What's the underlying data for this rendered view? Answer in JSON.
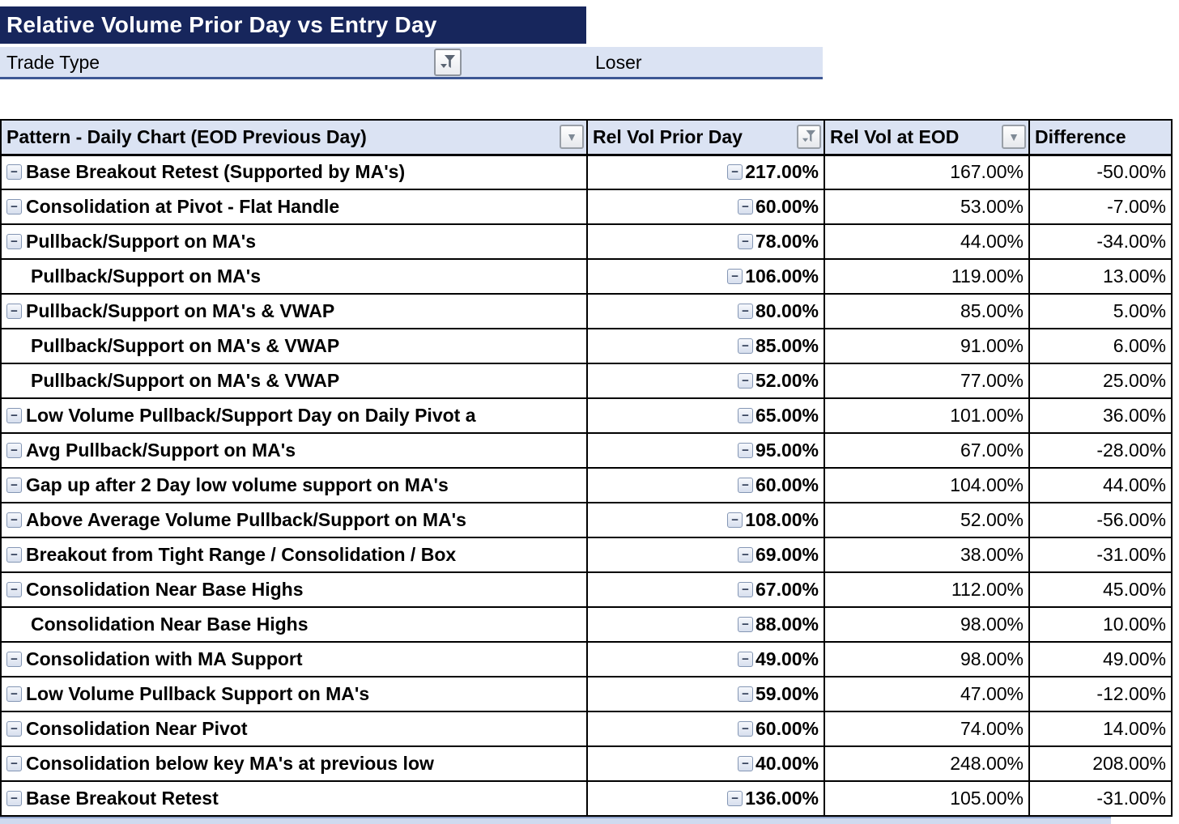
{
  "title": "Relative Volume Prior Day vs Entry Day",
  "filter": {
    "label": "Trade Type",
    "value": "Loser"
  },
  "icons": {
    "collapse_glyph": "−",
    "dropdown_glyph": "▼"
  },
  "colors": {
    "title_bg": "#17265C",
    "band_bg": "#DBE3F3",
    "header_bg": "#DBE3F3",
    "grid": "#000000",
    "band_border": "#3D5794",
    "strip_bg": "#CFDAEF"
  },
  "table": {
    "columns": [
      {
        "label": "Pattern - Daily Chart (EOD Previous Day)",
        "button": "dropdown"
      },
      {
        "label": "Rel Vol Prior Day",
        "button": "filter"
      },
      {
        "label": "Rel Vol at EOD",
        "button": "dropdown"
      },
      {
        "label": "Difference",
        "button": "none"
      }
    ],
    "rows": [
      {
        "pattern": "Base Breakout Retest (Supported by MA's)",
        "collapsible": true,
        "prior": "217.00%",
        "eod": "167.00%",
        "diff": "-50.00%"
      },
      {
        "pattern": "Consolidation at Pivot - Flat Handle",
        "collapsible": true,
        "prior": "60.00%",
        "eod": "53.00%",
        "diff": "-7.00%"
      },
      {
        "pattern": "Pullback/Support on MA's",
        "collapsible": true,
        "prior": "78.00%",
        "eod": "44.00%",
        "diff": "-34.00%"
      },
      {
        "pattern": "Pullback/Support on MA's",
        "collapsible": false,
        "prior": "106.00%",
        "eod": "119.00%",
        "diff": "13.00%"
      },
      {
        "pattern": "Pullback/Support on MA's & VWAP",
        "collapsible": true,
        "prior": "80.00%",
        "eod": "85.00%",
        "diff": "5.00%"
      },
      {
        "pattern": "Pullback/Support on MA's & VWAP",
        "collapsible": false,
        "prior": "85.00%",
        "eod": "91.00%",
        "diff": "6.00%"
      },
      {
        "pattern": "Pullback/Support on MA's & VWAP",
        "collapsible": false,
        "prior": "52.00%",
        "eod": "77.00%",
        "diff": "25.00%"
      },
      {
        "pattern": "Low Volume Pullback/Support Day on Daily Pivot a",
        "collapsible": true,
        "prior": "65.00%",
        "eod": "101.00%",
        "diff": "36.00%"
      },
      {
        "pattern": "Avg Pullback/Support on MA's",
        "collapsible": true,
        "prior": "95.00%",
        "eod": "67.00%",
        "diff": "-28.00%"
      },
      {
        "pattern": "Gap up after 2 Day low volume support on MA's",
        "collapsible": true,
        "prior": "60.00%",
        "eod": "104.00%",
        "diff": "44.00%"
      },
      {
        "pattern": "Above Average Volume Pullback/Support on MA's",
        "collapsible": true,
        "prior": "108.00%",
        "eod": "52.00%",
        "diff": "-56.00%"
      },
      {
        "pattern": "Breakout from Tight Range / Consolidation / Box",
        "collapsible": true,
        "prior": "69.00%",
        "eod": "38.00%",
        "diff": "-31.00%"
      },
      {
        "pattern": "Consolidation Near Base Highs",
        "collapsible": true,
        "prior": "67.00%",
        "eod": "112.00%",
        "diff": "45.00%"
      },
      {
        "pattern": "Consolidation Near Base Highs",
        "collapsible": false,
        "prior": "88.00%",
        "eod": "98.00%",
        "diff": "10.00%"
      },
      {
        "pattern": "Consolidation with MA Support",
        "collapsible": true,
        "prior": "49.00%",
        "eod": "98.00%",
        "diff": "49.00%"
      },
      {
        "pattern": "Low Volume Pullback Support on MA's",
        "collapsible": true,
        "prior": "59.00%",
        "eod": "47.00%",
        "diff": "-12.00%"
      },
      {
        "pattern": "Consolidation Near Pivot",
        "collapsible": true,
        "prior": "60.00%",
        "eod": "74.00%",
        "diff": "14.00%"
      },
      {
        "pattern": "Consolidation below key MA's at previous low",
        "collapsible": true,
        "prior": "40.00%",
        "eod": "248.00%",
        "diff": "208.00%"
      },
      {
        "pattern": "Base Breakout Retest",
        "collapsible": true,
        "prior": "136.00%",
        "eod": "105.00%",
        "diff": "-31.00%"
      }
    ]
  }
}
